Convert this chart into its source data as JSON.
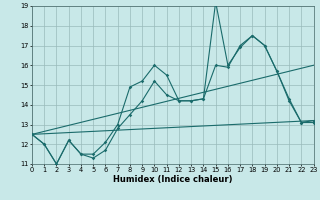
{
  "xlabel": "Humidex (Indice chaleur)",
  "bg_color": "#c8e8e8",
  "grid_color": "#99bbbb",
  "line_color": "#1a6b6b",
  "xlim": [
    0,
    23
  ],
  "ylim": [
    11,
    19
  ],
  "xticks": [
    0,
    1,
    2,
    3,
    4,
    5,
    6,
    7,
    8,
    9,
    10,
    11,
    12,
    13,
    14,
    15,
    16,
    17,
    18,
    19,
    20,
    21,
    22,
    23
  ],
  "yticks": [
    11,
    12,
    13,
    14,
    15,
    16,
    17,
    18,
    19
  ],
  "line1_x": [
    0,
    1,
    2,
    3,
    4,
    5,
    6,
    7,
    8,
    9,
    10,
    11,
    12,
    13,
    14,
    15,
    16,
    17,
    18,
    19,
    20,
    21,
    22,
    23
  ],
  "line1_y": [
    12.5,
    12.0,
    11.0,
    12.2,
    11.5,
    11.5,
    12.1,
    13.0,
    14.9,
    15.2,
    16.0,
    15.5,
    14.2,
    14.2,
    14.3,
    19.2,
    16.0,
    16.9,
    17.5,
    17.0,
    15.7,
    14.2,
    13.1,
    13.2
  ],
  "line2_x": [
    0,
    1,
    2,
    3,
    4,
    5,
    6,
    7,
    8,
    9,
    10,
    11,
    12,
    13,
    14,
    15,
    16,
    17,
    18,
    19,
    20,
    21,
    22,
    23
  ],
  "line2_y": [
    12.5,
    12.0,
    11.0,
    12.2,
    11.5,
    11.3,
    11.7,
    12.8,
    13.5,
    14.2,
    15.2,
    14.5,
    14.2,
    14.2,
    14.3,
    16.0,
    15.9,
    17.0,
    17.5,
    17.0,
    15.7,
    14.3,
    13.1,
    13.1
  ],
  "line3_x": [
    0,
    23
  ],
  "line3_y": [
    12.5,
    13.2
  ],
  "line4_x": [
    0,
    23
  ],
  "line4_y": [
    12.5,
    16.0
  ]
}
